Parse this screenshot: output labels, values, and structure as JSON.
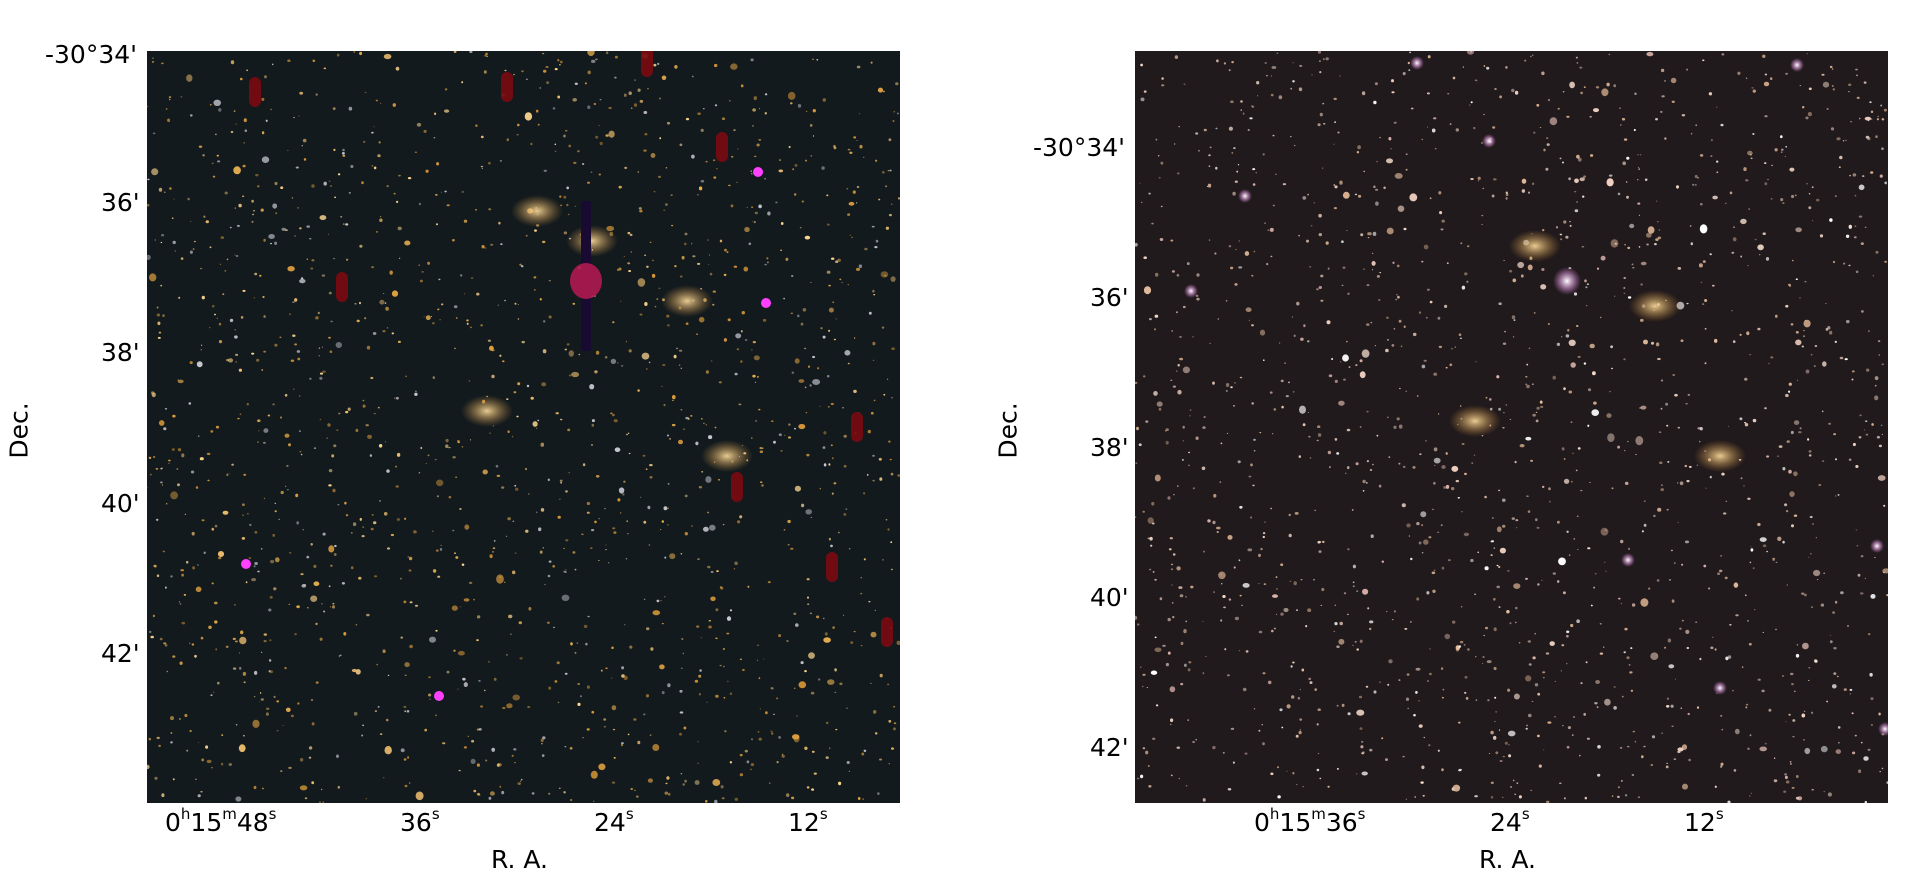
{
  "panels": [
    {
      "id": "left",
      "xlabel": "R. A.",
      "ylabel": "Dec.",
      "yticks": [
        "-30°34'",
        "36'",
        "38'",
        "40'",
        "42'"
      ],
      "xticks": [
        {
          "h": "0",
          "hs": "h",
          "m": "15",
          "ms": "m",
          "s": "48",
          "ss": "s"
        },
        {
          "s": "36",
          "ss": "s"
        },
        {
          "s": "24",
          "ss": "s"
        },
        {
          "s": "12",
          "ss": "s"
        }
      ],
      "background": "#121a1e"
    },
    {
      "id": "right",
      "xlabel": "R. A.",
      "ylabel": "Dec.",
      "yticks": [
        "-30°34'",
        "36'",
        "38'",
        "40'",
        "42'"
      ],
      "xticks": [
        {
          "h": "0",
          "hs": "h",
          "m": "15",
          "ms": "m",
          "s": "36",
          "ss": "s"
        },
        {
          "s": "24",
          "ss": "s"
        },
        {
          "s": "12",
          "ss": "s"
        }
      ],
      "background": "#211a1c"
    }
  ]
}
